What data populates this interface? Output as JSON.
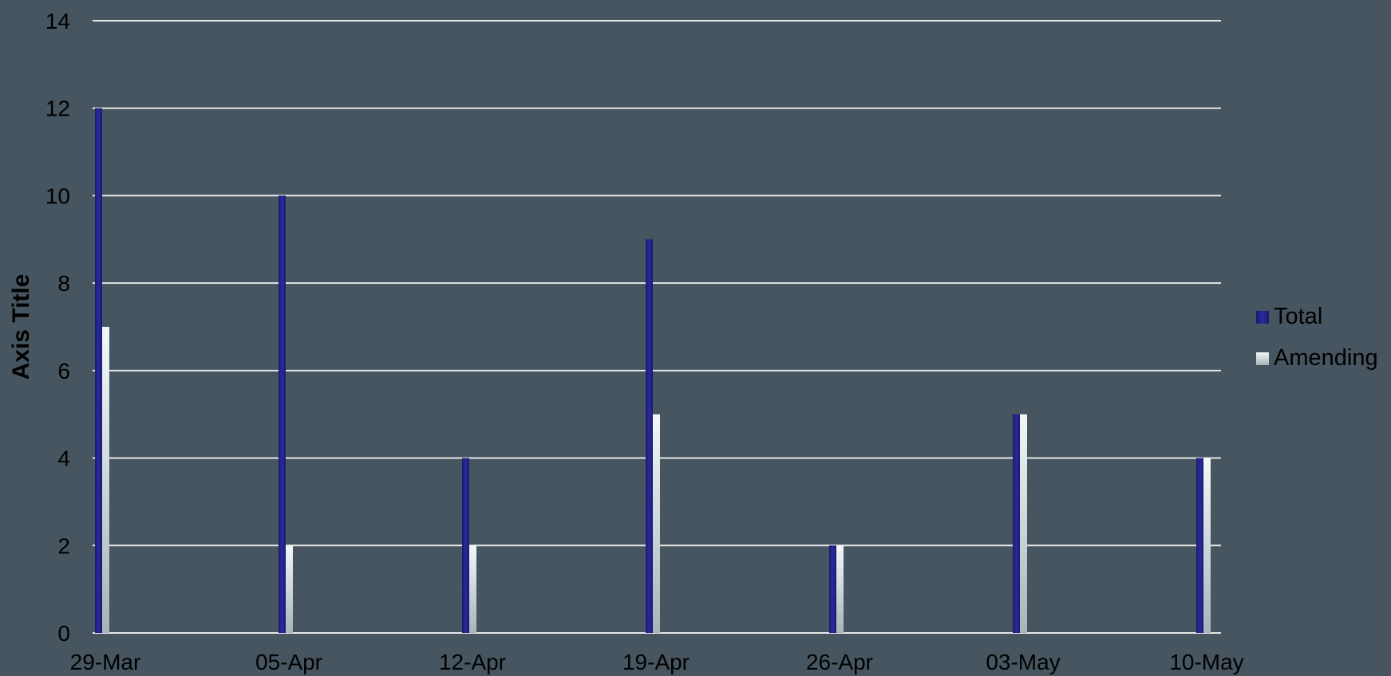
{
  "chart_data": {
    "type": "bar",
    "categories": [
      "29-Mar",
      "05-Apr",
      "12-Apr",
      "19-Apr",
      "26-Apr",
      "03-May",
      "10-May"
    ],
    "series": [
      {
        "name": "Total",
        "values": [
          12,
          10,
          4,
          9,
          2,
          5,
          4
        ],
        "color": "#24248c"
      },
      {
        "name": "Amending",
        "values": [
          7,
          2,
          2,
          5,
          2,
          5,
          4
        ],
        "color": "#dce8ec"
      }
    ],
    "title": "",
    "xlabel": "",
    "ylabel": "Axis Title",
    "ylim": [
      0,
      14
    ],
    "yticks": [
      0,
      2,
      4,
      6,
      8,
      10,
      12,
      14
    ],
    "grid": true,
    "legend_position": "right",
    "background_color": "#46555f",
    "gridline_color": "#e6e6e6"
  }
}
